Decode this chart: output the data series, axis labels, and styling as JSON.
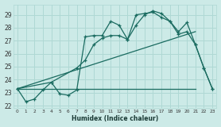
{
  "xlabel": "Humidex (Indice chaleur)",
  "xlim": [
    -0.5,
    23.5
  ],
  "ylim": [
    21.8,
    29.8
  ],
  "yticks": [
    22,
    23,
    24,
    25,
    26,
    27,
    28,
    29
  ],
  "xticks": [
    0,
    1,
    2,
    3,
    4,
    5,
    6,
    7,
    8,
    9,
    10,
    11,
    12,
    13,
    14,
    15,
    16,
    17,
    18,
    19,
    20,
    21,
    22,
    23
  ],
  "bg_color": "#cceae7",
  "grid_color": "#afd8d4",
  "line_color": "#1a6b60",
  "line1_x": [
    0,
    1,
    2,
    3,
    4,
    5,
    6,
    7,
    8,
    9,
    10,
    11,
    12,
    13,
    14,
    15,
    16,
    17,
    18,
    19,
    20,
    21,
    22,
    23
  ],
  "line1_y": [
    23.3,
    22.3,
    22.5,
    23.2,
    23.8,
    22.9,
    22.8,
    23.2,
    27.3,
    27.4,
    27.4,
    28.5,
    28.2,
    27.1,
    29.0,
    29.1,
    29.2,
    28.8,
    28.5,
    27.7,
    28.4,
    26.7,
    24.9,
    23.3
  ],
  "line2_x": [
    0,
    4,
    7,
    8,
    9,
    10,
    11,
    12,
    13,
    14,
    15,
    16,
    17,
    18,
    19,
    20,
    21,
    22,
    23
  ],
  "line2_y": [
    23.3,
    23.8,
    24.9,
    25.5,
    26.7,
    27.2,
    27.4,
    27.4,
    27.1,
    28.2,
    29.0,
    29.3,
    29.1,
    28.5,
    27.5,
    27.7,
    26.7,
    24.9,
    23.3
  ],
  "line3_x": [
    0,
    21
  ],
  "line3_y": [
    23.3,
    23.3
  ],
  "line4_x": [
    0,
    21
  ],
  "line4_y": [
    23.3,
    27.7
  ]
}
